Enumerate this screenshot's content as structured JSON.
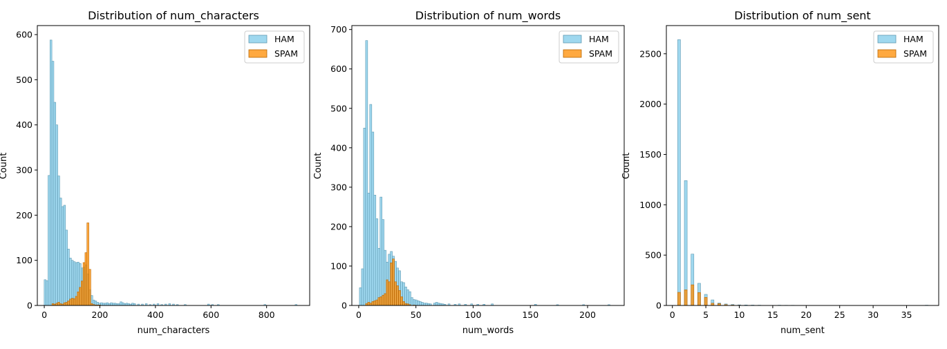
{
  "colors": {
    "ham": "#87CEEB",
    "spam": "#FF8C00",
    "edge_ham": "#5E98B0",
    "edge_spam": "#B86400"
  },
  "chart_data": [
    {
      "type": "bar",
      "title": "Distribution of num_characters",
      "xlabel": "num_characters",
      "ylabel": "Count",
      "xlim": [
        -25,
        955
      ],
      "ylim": [
        0,
        620
      ],
      "xticks": [
        0,
        200,
        400,
        600,
        800
      ],
      "yticks": [
        0,
        100,
        200,
        300,
        400,
        500,
        600
      ],
      "legend_position": "top-right",
      "bin_width": 7,
      "series": [
        {
          "name": "HAM",
          "color": "ham",
          "points": [
            [
              3,
              57
            ],
            [
              10,
              55
            ],
            [
              17,
              288
            ],
            [
              24,
              588
            ],
            [
              31,
              541
            ],
            [
              38,
              450
            ],
            [
              45,
              400
            ],
            [
              52,
              287
            ],
            [
              59,
              238
            ],
            [
              66,
              219
            ],
            [
              73,
              222
            ],
            [
              80,
              167
            ],
            [
              87,
              125
            ],
            [
              94,
              105
            ],
            [
              101,
              100
            ],
            [
              108,
              97
            ],
            [
              115,
              95
            ],
            [
              122,
              96
            ],
            [
              129,
              93
            ],
            [
              136,
              83
            ],
            [
              143,
              85
            ],
            [
              150,
              90
            ],
            [
              157,
              70
            ],
            [
              164,
              35
            ],
            [
              171,
              22
            ],
            [
              178,
              12
            ],
            [
              185,
              10
            ],
            [
              192,
              7
            ],
            [
              199,
              5
            ],
            [
              206,
              6
            ],
            [
              213,
              5
            ],
            [
              220,
              5
            ],
            [
              227,
              6
            ],
            [
              234,
              4
            ],
            [
              241,
              6
            ],
            [
              248,
              5
            ],
            [
              255,
              5
            ],
            [
              262,
              4
            ],
            [
              269,
              4
            ],
            [
              276,
              8
            ],
            [
              283,
              6
            ],
            [
              290,
              4
            ],
            [
              297,
              5
            ],
            [
              304,
              4
            ],
            [
              311,
              3
            ],
            [
              318,
              5
            ],
            [
              325,
              4
            ],
            [
              339,
              3
            ],
            [
              353,
              3
            ],
            [
              367,
              4
            ],
            [
              381,
              2
            ],
            [
              395,
              3
            ],
            [
              409,
              4
            ],
            [
              423,
              2
            ],
            [
              437,
              3
            ],
            [
              451,
              4
            ],
            [
              465,
              3
            ],
            [
              479,
              2
            ],
            [
              507,
              2
            ],
            [
              591,
              3
            ],
            [
              605,
              2
            ],
            [
              626,
              2
            ],
            [
              794,
              2
            ],
            [
              906,
              2
            ]
          ]
        },
        {
          "name": "SPAM",
          "color": "spam",
          "points": [
            [
              31,
              4
            ],
            [
              38,
              3
            ],
            [
              45,
              5
            ],
            [
              52,
              7
            ],
            [
              59,
              4
            ],
            [
              66,
              3
            ],
            [
              73,
              6
            ],
            [
              80,
              7
            ],
            [
              87,
              10
            ],
            [
              94,
              14
            ],
            [
              101,
              16
            ],
            [
              108,
              15
            ],
            [
              115,
              20
            ],
            [
              122,
              30
            ],
            [
              129,
              40
            ],
            [
              136,
              54
            ],
            [
              143,
              95
            ],
            [
              150,
              117
            ],
            [
              157,
              183
            ],
            [
              164,
              80
            ],
            [
              171,
              4
            ],
            [
              178,
              2
            ],
            [
              185,
              1
            ],
            [
              192,
              1
            ],
            [
              199,
              1
            ]
          ]
        }
      ]
    },
    {
      "type": "bar",
      "title": "Distribution of num_words",
      "xlabel": "num_words",
      "ylabel": "Count",
      "xlim": [
        -6,
        232
      ],
      "ylim": [
        0,
        710
      ],
      "xticks": [
        0,
        50,
        100,
        150,
        200
      ],
      "yticks": [
        0,
        100,
        200,
        300,
        400,
        500,
        600,
        700
      ],
      "legend_position": "top-right",
      "bin_width": 1.8,
      "series": [
        {
          "name": "HAM",
          "color": "ham",
          "points": [
            [
              1.5,
              45
            ],
            [
              3.3,
              93
            ],
            [
              5.1,
              450
            ],
            [
              6.9,
              672
            ],
            [
              8.7,
              285
            ],
            [
              10.5,
              510
            ],
            [
              12.3,
              440
            ],
            [
              14.1,
              280
            ],
            [
              15.9,
              220
            ],
            [
              17.7,
              145
            ],
            [
              19.5,
              275
            ],
            [
              21.3,
              218
            ],
            [
              23.1,
              140
            ],
            [
              24.9,
              110
            ],
            [
              26.7,
              130
            ],
            [
              28.5,
              137
            ],
            [
              30.3,
              125
            ],
            [
              32.1,
              112
            ],
            [
              33.9,
              95
            ],
            [
              35.7,
              88
            ],
            [
              37.5,
              60
            ],
            [
              39.3,
              58
            ],
            [
              41.1,
              47
            ],
            [
              42.9,
              40
            ],
            [
              44.7,
              35
            ],
            [
              46.5,
              20
            ],
            [
              48.3,
              15
            ],
            [
              50.1,
              14
            ],
            [
              51.9,
              12
            ],
            [
              53.7,
              10
            ],
            [
              55.5,
              8
            ],
            [
              57.3,
              6
            ],
            [
              59.1,
              6
            ],
            [
              60.9,
              5
            ],
            [
              62.7,
              4
            ],
            [
              66.3,
              6
            ],
            [
              68.1,
              8
            ],
            [
              69.9,
              6
            ],
            [
              71.7,
              5
            ],
            [
              73.5,
              4
            ],
            [
              75.3,
              3
            ],
            [
              78.9,
              4
            ],
            [
              84.3,
              3
            ],
            [
              87.9,
              4
            ],
            [
              93.3,
              3
            ],
            [
              98.7,
              4
            ],
            [
              104.1,
              3
            ],
            [
              109.5,
              3
            ],
            [
              116.7,
              4
            ],
            [
              154.5,
              3
            ],
            [
              173.7,
              2
            ],
            [
              196.5,
              2
            ],
            [
              218.7,
              2
            ]
          ]
        },
        {
          "name": "SPAM",
          "color": "spam",
          "points": [
            [
              6.9,
              5
            ],
            [
              8.7,
              8
            ],
            [
              10.5,
              6
            ],
            [
              12.3,
              10
            ],
            [
              14.1,
              12
            ],
            [
              15.9,
              14
            ],
            [
              17.7,
              20
            ],
            [
              19.5,
              22
            ],
            [
              21.3,
              26
            ],
            [
              23.1,
              30
            ],
            [
              24.9,
              65
            ],
            [
              26.7,
              60
            ],
            [
              28.5,
              108
            ],
            [
              30.3,
              118
            ],
            [
              32.1,
              60
            ],
            [
              33.9,
              50
            ],
            [
              35.7,
              38
            ],
            [
              37.5,
              22
            ],
            [
              39.3,
              10
            ],
            [
              41.1,
              5
            ],
            [
              42.9,
              4
            ],
            [
              44.7,
              2
            ],
            [
              48.3,
              1
            ]
          ]
        }
      ]
    },
    {
      "type": "bar",
      "title": "Distribution of num_sent",
      "xlabel": "num_sent",
      "ylabel": "Count",
      "xlim": [
        -0.9,
        39.8
      ],
      "ylim": [
        0,
        2780
      ],
      "xticks": [
        0,
        5,
        10,
        15,
        20,
        25,
        30,
        35
      ],
      "yticks": [
        0,
        500,
        1000,
        1500,
        2000,
        2500
      ],
      "legend_position": "top-right",
      "bin_width": 0.42,
      "series": [
        {
          "name": "HAM",
          "color": "ham",
          "points": [
            [
              1,
              2640
            ],
            [
              2,
              1240
            ],
            [
              3,
              510
            ],
            [
              4,
              220
            ],
            [
              5,
              110
            ],
            [
              6,
              55
            ],
            [
              7,
              25
            ],
            [
              8,
              15
            ],
            [
              9,
              10
            ],
            [
              10,
              6
            ],
            [
              11,
              5
            ],
            [
              12,
              4
            ],
            [
              13,
              3
            ],
            [
              16,
              3
            ],
            [
              17,
              2
            ],
            [
              18,
              2
            ],
            [
              38,
              3
            ]
          ]
        },
        {
          "name": "SPAM",
          "color": "spam",
          "points": [
            [
              1,
              130
            ],
            [
              2,
              155
            ],
            [
              3,
              205
            ],
            [
              4,
              128
            ],
            [
              5,
              80
            ],
            [
              6,
              22
            ],
            [
              7,
              18
            ],
            [
              8,
              8
            ],
            [
              9,
              4
            ],
            [
              10,
              2
            ]
          ]
        }
      ]
    }
  ]
}
